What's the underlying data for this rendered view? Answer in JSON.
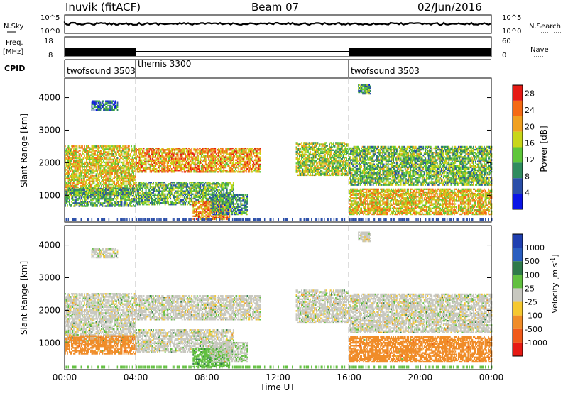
{
  "header": {
    "station": "Inuvik (fitACF)",
    "beam": "Beam 07",
    "date": "02/Jun/2016"
  },
  "panels": {
    "nsky": {
      "label": "N.Sky",
      "left_ticks": [
        "10^5",
        "10^0"
      ],
      "right_label": "N.Search",
      "right_ticks": [
        "10^5",
        "10^0"
      ]
    },
    "freq": {
      "label_1": "Freq.",
      "label_2": "[MHz]",
      "left_ticks": [
        "18",
        "8"
      ],
      "right_label": "Nave",
      "right_ticks": [
        "60",
        "0"
      ]
    },
    "cpid": {
      "label": "CPID",
      "segments": [
        {
          "name": "twofsound 3503",
          "start_h": 0,
          "end_h": 4
        },
        {
          "name": "themis 3300",
          "start_h": 4,
          "end_h": 16
        },
        {
          "name": "twofsound 3503",
          "start_h": 16,
          "end_h": 24
        }
      ]
    }
  },
  "power_panel": {
    "ylabel": "Slant Range [km]",
    "yticks": [
      "1000",
      "2000",
      "3000",
      "4000"
    ],
    "colorbar_label": "Power [dB]",
    "colorbar_ticks": [
      "4",
      "8",
      "12",
      "16",
      "20",
      "24",
      "28"
    ],
    "colors": [
      "#0a14e6",
      "#2a4ea8",
      "#2f8c5f",
      "#5ec63a",
      "#c8d619",
      "#f0a020",
      "#f56a14",
      "#e61a14"
    ]
  },
  "velocity_panel": {
    "ylabel": "Slant Range [km]",
    "yticks": [
      "1000",
      "2000",
      "3000",
      "4000"
    ],
    "colorbar_label": "Velocity [m s",
    "colorbar_sup": "-1",
    "colorbar_close": "]",
    "colorbar_ticks": [
      "1000",
      "500",
      "100",
      "25",
      "-25",
      "-100",
      "-500",
      "-1000"
    ],
    "colors": [
      "#1f3fb0",
      "#2a5ec0",
      "#2f7a4a",
      "#62c040",
      "#c8c8c0",
      "#f5c830",
      "#f08c28",
      "#f05a1a",
      "#e61a14"
    ]
  },
  "xaxis": {
    "label": "Time UT",
    "ticks": [
      "00:00",
      "04:00",
      "08:00",
      "12:00",
      "16:00",
      "20:00",
      "00:00"
    ]
  },
  "chart_data": {
    "type": "heatmap",
    "title": "Inuvik (fitACF) Beam 07 02/Jun/2016",
    "xlabel": "Time UT",
    "ylabel": "Slant Range [km]",
    "xlim_hours": [
      0,
      24
    ],
    "ylim_km": [
      180,
      4600
    ],
    "power_range_db": [
      0,
      30
    ],
    "velocity_range_ms": [
      -1000,
      1000
    ],
    "cpid_segments": [
      {
        "name": "twofsound 3503",
        "start_h": 0,
        "end_h": 4
      },
      {
        "name": "themis 3300",
        "start_h": 4,
        "end_h": 16
      },
      {
        "name": "twofsound 3503",
        "start_h": 16,
        "end_h": 24
      }
    ],
    "freq_levels_mhz": [
      {
        "start_h": 0,
        "end_h": 4,
        "value": 12
      },
      {
        "start_h": 4,
        "end_h": 16,
        "value": 10
      },
      {
        "start_h": 16,
        "end_h": 24,
        "value": 12
      }
    ],
    "echo_regions": [
      {
        "t0": 0.0,
        "t1": 4.0,
        "r0": 1000,
        "r1": 2500,
        "power": 18,
        "velocity": 0
      },
      {
        "t0": 1.5,
        "t1": 3.0,
        "r0": 3600,
        "r1": 3900,
        "power": 7,
        "velocity": 0
      },
      {
        "t0": 0.0,
        "t1": 4.0,
        "r0": 650,
        "r1": 1200,
        "power": 11,
        "velocity": -200
      },
      {
        "t0": 4.0,
        "t1": 11.0,
        "r0": 1700,
        "r1": 2450,
        "power": 21,
        "velocity": 0
      },
      {
        "t0": 4.0,
        "t1": 9.5,
        "r0": 700,
        "r1": 1400,
        "power": 12,
        "velocity": 0
      },
      {
        "t0": 7.2,
        "t1": 9.3,
        "r0": 250,
        "r1": 800,
        "power": 22,
        "velocity": 80
      },
      {
        "t0": 8.2,
        "t1": 10.3,
        "r0": 400,
        "r1": 1000,
        "power": 10,
        "velocity": 10
      },
      {
        "t0": 13.0,
        "t1": 16.0,
        "r0": 1600,
        "r1": 2600,
        "power": 15,
        "velocity": 0
      },
      {
        "t0": 16.0,
        "t1": 24.0,
        "r0": 1300,
        "r1": 2500,
        "power": 13,
        "velocity": 0
      },
      {
        "t0": 16.0,
        "t1": 24.0,
        "r0": 400,
        "r1": 1200,
        "power": 19,
        "velocity": -300
      },
      {
        "t0": 16.5,
        "t1": 17.2,
        "r0": 4100,
        "r1": 4400,
        "power": 10,
        "velocity": 0
      }
    ],
    "colorbar_power_db": [
      4,
      8,
      12,
      16,
      20,
      24,
      28
    ],
    "colorbar_velocity_ms": [
      1000,
      500,
      100,
      25,
      -25,
      -100,
      -500,
      -1000
    ]
  }
}
